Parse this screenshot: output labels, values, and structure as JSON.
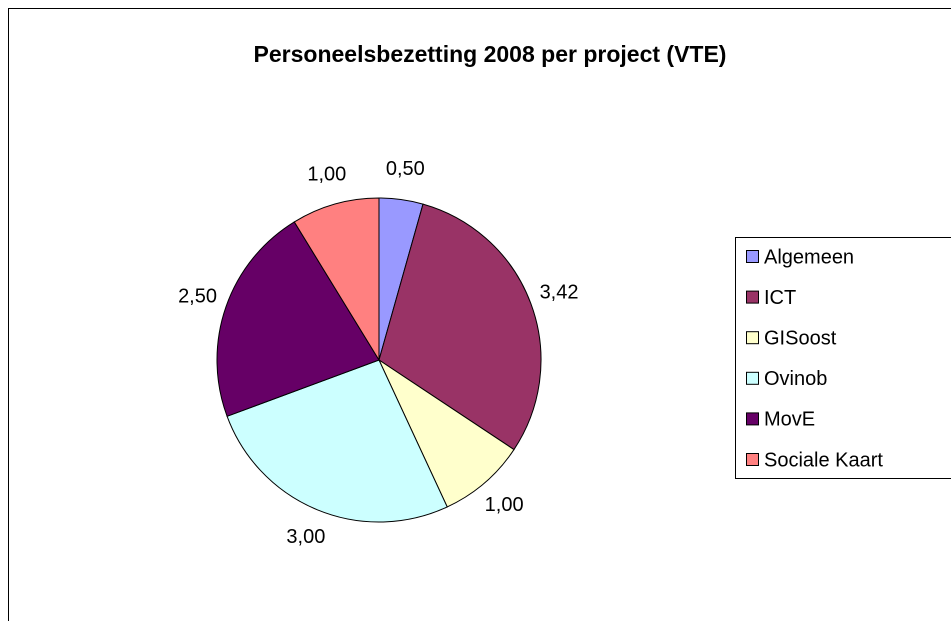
{
  "chart_data": {
    "type": "pie",
    "title": "Personeelsbezetting 2008 per project (VTE)",
    "categories": [
      "Algemeen",
      "ICT",
      "GISoost",
      "Ovinob",
      "MovE",
      "Sociale Kaart"
    ],
    "values": [
      0.5,
      3.42,
      1,
      3,
      2.5,
      1
    ],
    "value_labels": [
      "0,50",
      "3,42",
      "1,00",
      "3,00",
      "2,50",
      "1,00"
    ],
    "colors": [
      "#9999ff",
      "#993366",
      "#ffffcc",
      "#ccffff",
      "#660066",
      "#ff8080"
    ],
    "legend": "right"
  }
}
